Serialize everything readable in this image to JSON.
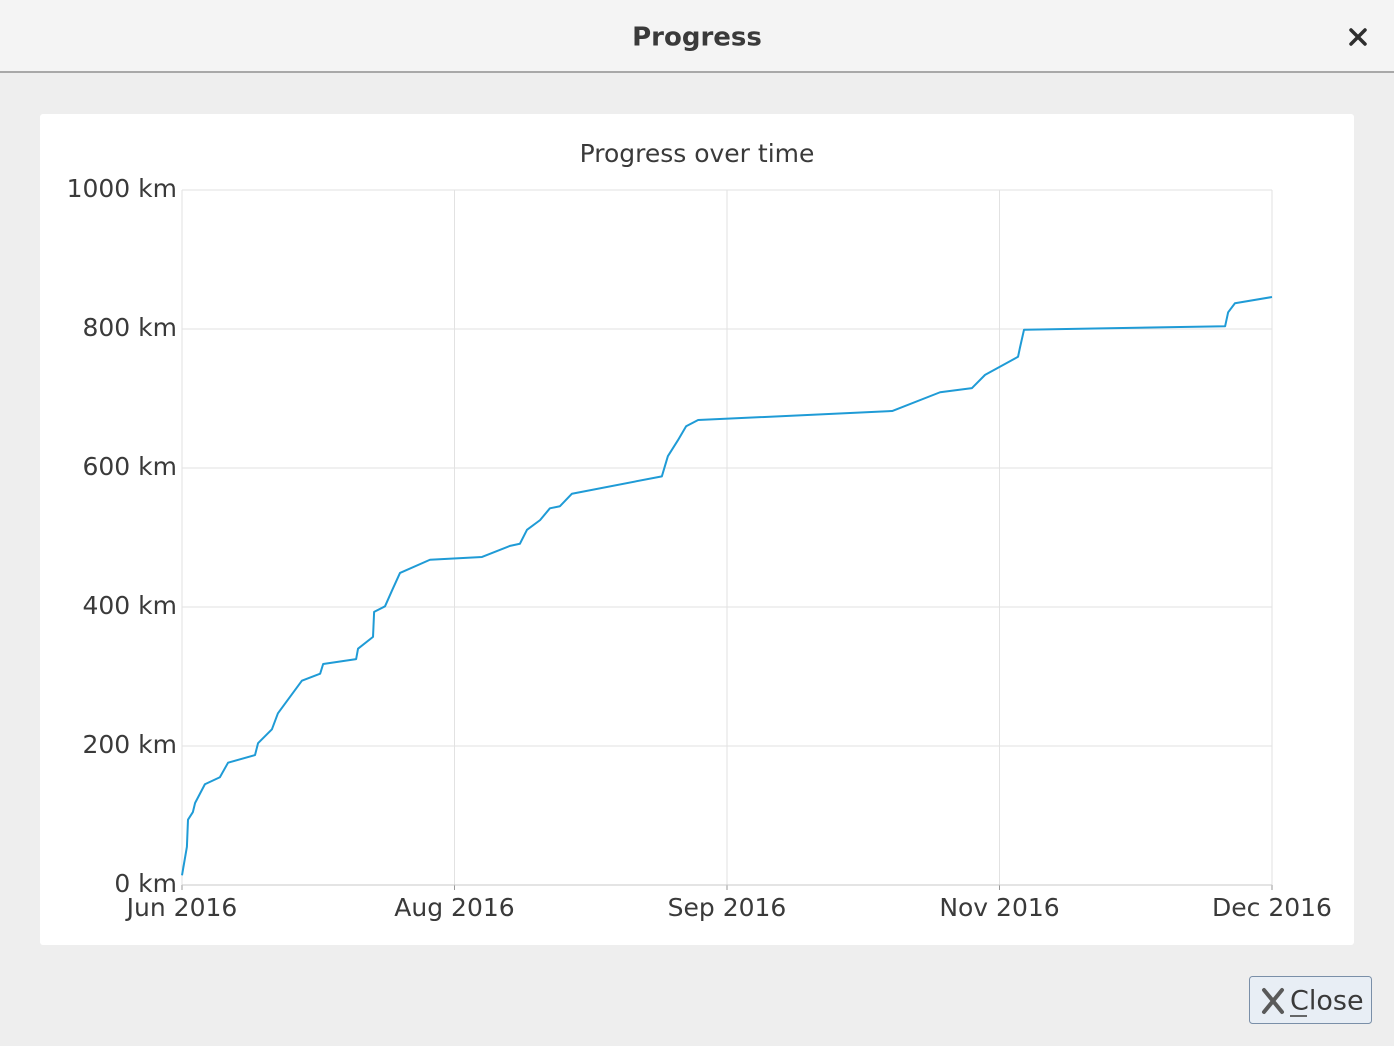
{
  "window": {
    "title": "Progress"
  },
  "chart_data": {
    "type": "line",
    "title": "Progress over time",
    "x": [
      0,
      0.018,
      0.022,
      0.04,
      0.048,
      0.084,
      0.139,
      0.169,
      0.268,
      0.279,
      0.33,
      0.352,
      0.44,
      0.507,
      0.518,
      0.639,
      0.646,
      0.701,
      0.705,
      0.745,
      0.771,
      0.8,
      0.91,
      1.101,
      1.204,
      1.24,
      1.266,
      1.314,
      1.35,
      1.387,
      1.431,
      1.761,
      1.783,
      1.82,
      1.85,
      1.894,
      2.606,
      2.782,
      2.899,
      2.947,
      3.068,
      3.075,
      3.09,
      3.828,
      3.839,
      3.864,
      4
    ],
    "values": [
      14,
      55,
      94,
      105,
      118,
      145,
      155,
      176,
      187,
      204,
      224,
      247,
      294,
      304,
      318,
      325,
      340,
      357,
      393,
      401,
      424,
      449,
      468,
      472,
      488,
      491,
      511,
      525,
      542,
      545,
      563,
      588,
      617,
      640,
      660,
      669,
      682,
      709,
      715,
      734,
      760,
      773,
      799,
      804,
      824,
      837,
      846
    ],
    "color": "#1f9bd6",
    "xlim": [
      0,
      4
    ],
    "xticks": [
      {
        "value": 0,
        "label": "Jun 2016"
      },
      {
        "value": 1,
        "label": "Aug 2016"
      },
      {
        "value": 2,
        "label": "Sep 2016"
      },
      {
        "value": 3,
        "label": "Nov 2016"
      },
      {
        "value": 4,
        "label": "Dec 2016"
      }
    ],
    "ylim": [
      0,
      1000
    ],
    "yticks": [
      {
        "value": 0,
        "label": "0 km"
      },
      {
        "value": 200,
        "label": "200 km"
      },
      {
        "value": 400,
        "label": "400 km"
      },
      {
        "value": 600,
        "label": "600 km"
      },
      {
        "value": 800,
        "label": "800 km"
      },
      {
        "value": 1000,
        "label": "1000 km"
      }
    ],
    "grid": true
  },
  "button": {
    "label": "Close"
  }
}
